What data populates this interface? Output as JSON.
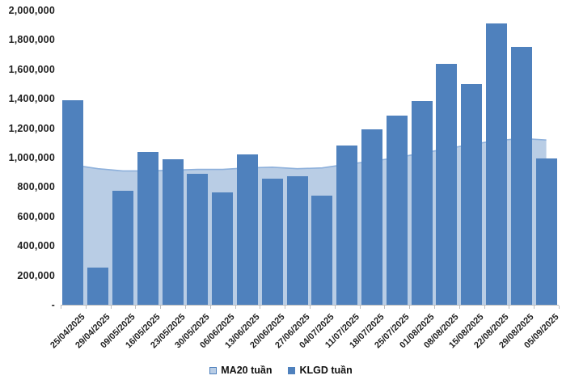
{
  "chart_data": {
    "type": "bar",
    "title": "",
    "xlabel": "",
    "ylabel": "",
    "categories": [
      "25/04/2025",
      "29/04/2025",
      "09/05/2025",
      "16/05/2025",
      "23/05/2025",
      "30/05/2025",
      "06/06/2025",
      "13/06/2025",
      "20/06/2025",
      "27/06/2025",
      "04/07/2025",
      "11/07/2025",
      "18/07/2025",
      "25/07/2025",
      "01/08/2025",
      "08/08/2025",
      "15/08/2025",
      "22/08/2025",
      "29/08/2025",
      "05/09/2025"
    ],
    "series": [
      {
        "name": "MA20 tuần",
        "type": "area",
        "fill_color": "#B9CDE5",
        "line_color": "#8DB0DB",
        "values": [
          950000,
          925000,
          910000,
          910000,
          915000,
          920000,
          920000,
          930000,
          935000,
          925000,
          930000,
          955000,
          975000,
          1000000,
          1030000,
          1060000,
          1090000,
          1115000,
          1130000,
          1120000
        ]
      },
      {
        "name": "KLGD tuần",
        "type": "bar",
        "fill_color": "#4F81BD",
        "values": [
          1390000,
          255000,
          775000,
          1040000,
          990000,
          890000,
          765000,
          1020000,
          860000,
          875000,
          740000,
          1080000,
          1190000,
          1285000,
          1385000,
          1635000,
          1500000,
          1910000,
          1755000,
          995000
        ]
      }
    ],
    "ylim": [
      0,
      2000000
    ],
    "ytick_step": 200000,
    "ytick_labels_bottom_up": [
      "-",
      "200,000",
      "400,000",
      "600,000",
      "800,000",
      "1,000,000",
      "1,200,000",
      "1,400,000",
      "1,600,000",
      "1,800,000",
      "2,000,000"
    ],
    "grid": false,
    "legend_position": "bottom"
  },
  "legend": {
    "items": [
      {
        "label": "MA20 tuần",
        "swatch_fill": "#B9CDE5",
        "swatch_border": "#4F81BD"
      },
      {
        "label": "KLGD tuần",
        "swatch_fill": "#4F81BD",
        "swatch_border": "#4F81BD"
      }
    ]
  },
  "colors": {
    "bar": "#4F81BD",
    "ma_area": "#B9CDE5",
    "ma_line": "#8DB0DB",
    "axis": "#bfbfbf",
    "label_text": "#1f1f1f",
    "background": "#ffffff"
  }
}
